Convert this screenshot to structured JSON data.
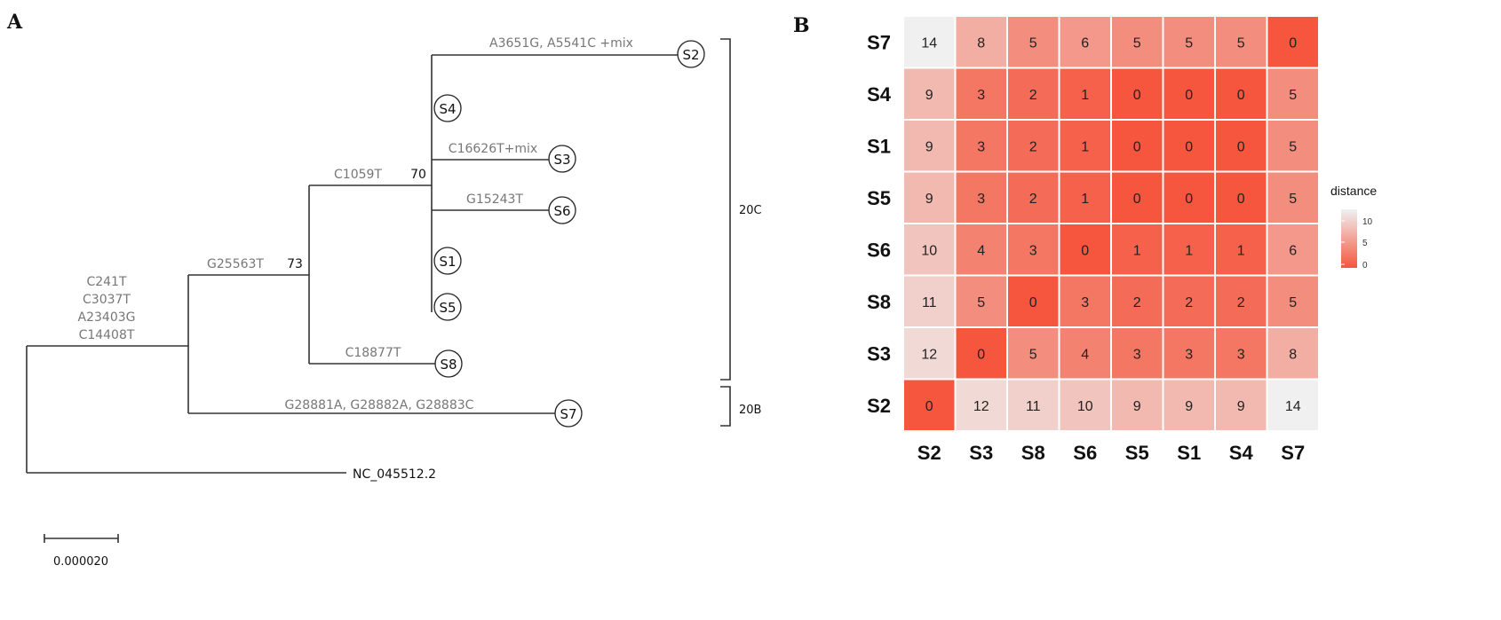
{
  "panels": {
    "a": "A",
    "b": "B"
  },
  "tree": {
    "mutations": {
      "root_lines": [
        "C241T",
        "C3037T",
        "A23403G",
        "C14408T"
      ],
      "g25563t": "G25563T",
      "c1059t": "C1059T",
      "s2": "A3651G, A5541C +mix",
      "s3": "C16626T+mix",
      "s6": "G15243T",
      "s8": "C18877T",
      "s7": "G28881A, G28882A, G28883C"
    },
    "support": {
      "n73": "73",
      "n70": "70"
    },
    "leaves": {
      "s2": "S2",
      "s4": "S4",
      "s3": "S3",
      "s6": "S6",
      "s1": "S1",
      "s5": "S5",
      "s8": "S8",
      "s7": "S7"
    },
    "outgroup": "NC_045512.2",
    "clades": {
      "c20c": "20C",
      "c20b": "20B"
    },
    "scale_label": "0.000020"
  },
  "heatmap": {
    "rows": [
      "S7",
      "S4",
      "S1",
      "S5",
      "S6",
      "S8",
      "S3",
      "S2"
    ],
    "cols": [
      "S2",
      "S3",
      "S8",
      "S6",
      "S5",
      "S1",
      "S4",
      "S7"
    ],
    "values": [
      [
        14,
        8,
        5,
        6,
        5,
        5,
        5,
        0
      ],
      [
        9,
        3,
        2,
        1,
        0,
        0,
        0,
        5
      ],
      [
        9,
        3,
        2,
        1,
        0,
        0,
        0,
        5
      ],
      [
        9,
        3,
        2,
        1,
        0,
        0,
        0,
        5
      ],
      [
        10,
        4,
        3,
        0,
        1,
        1,
        1,
        6
      ],
      [
        11,
        5,
        0,
        3,
        2,
        2,
        2,
        5
      ],
      [
        12,
        0,
        5,
        4,
        3,
        3,
        3,
        8
      ],
      [
        0,
        12,
        11,
        10,
        9,
        9,
        9,
        14
      ]
    ],
    "scale": {
      "min": 0,
      "max": 14,
      "low_color": "#f5563d",
      "high_color": "#f0f0f0"
    },
    "legend": {
      "title": "distance",
      "ticks": [
        "10",
        "5",
        "0"
      ]
    }
  }
}
